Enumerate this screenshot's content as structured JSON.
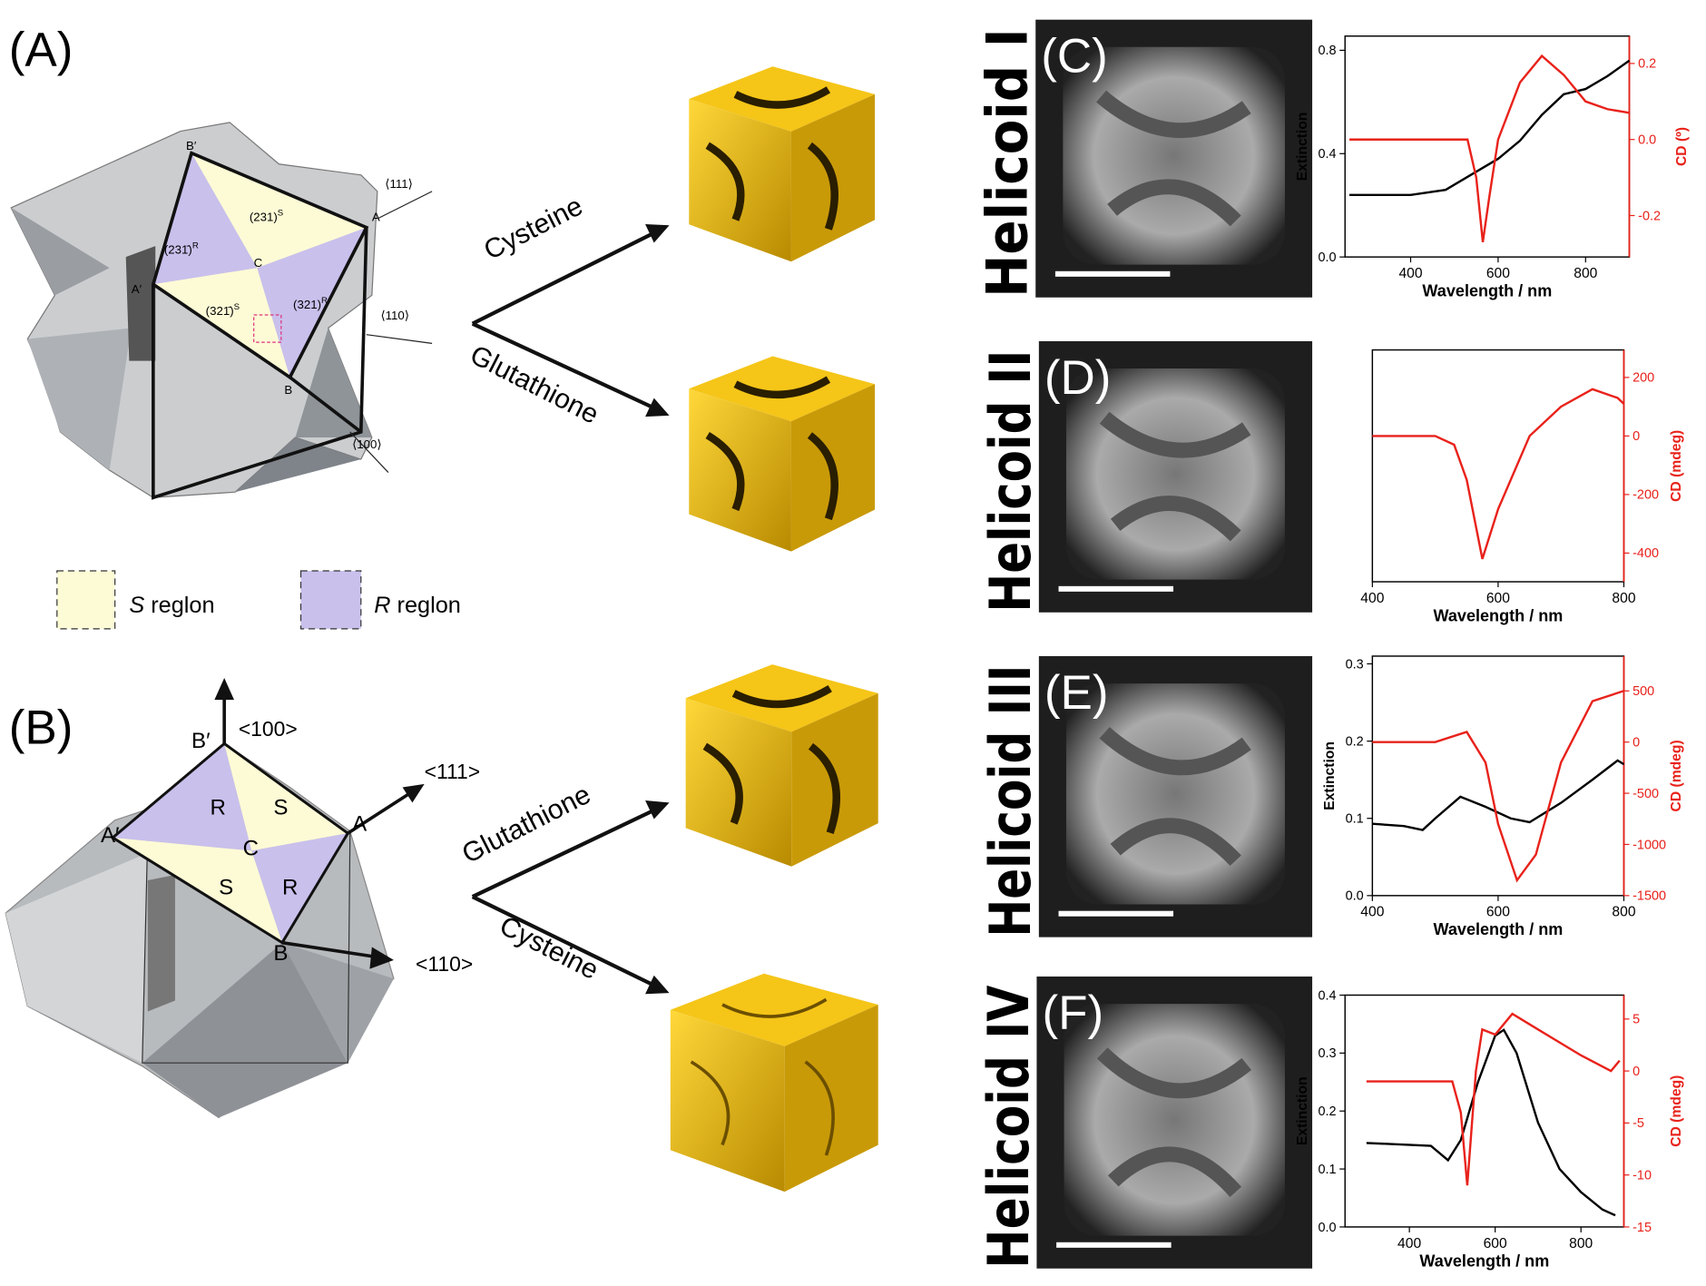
{
  "panel_a": {
    "label": "(A)",
    "vertices": [
      "B′",
      "A",
      "A′",
      "C",
      "B"
    ],
    "faces": [
      {
        "text": "(231)",
        "sup": "S"
      },
      {
        "text": "(231̄)",
        "sup": "R"
      },
      {
        "text": "(321)",
        "sup": "R"
      },
      {
        "text": "(321̄)",
        "sup": "S"
      }
    ],
    "directions": [
      "⟨111⟩",
      "⟨110⟩",
      "⟨100⟩"
    ]
  },
  "legend": [
    {
      "symbol": "S",
      "text": "reglon"
    },
    {
      "symbol": "R",
      "text": "reglon"
    }
  ],
  "panel_b": {
    "label": "(B)",
    "vertices": [
      "B′",
      "A",
      "A′",
      "C",
      "B"
    ],
    "faces": [
      "R",
      "S",
      "S",
      "R"
    ],
    "directions": [
      "<100>",
      "<111>",
      "<110>"
    ]
  },
  "ligands": [
    "Cysteine",
    "Glutathione",
    "Glutathione",
    "Cysteine"
  ],
  "rows": [
    {
      "name": "Helicoid I",
      "panel": "(C)"
    },
    {
      "name": "Helicoid II",
      "panel": "(D)"
    },
    {
      "name": "Helicoid III",
      "panel": "(E)"
    },
    {
      "name": "Helicoid IV",
      "panel": "(F)"
    }
  ],
  "chart_data": [
    {
      "type": "line",
      "x_label": "Wavelength / nm",
      "y_label": "Extinction",
      "y2_label": "CD (º)",
      "y2_color": "#e8221b",
      "xlim": [
        250,
        900
      ],
      "xticks": [
        400,
        600,
        800
      ],
      "ylim": [
        0,
        0.855
      ],
      "yticks": [
        {
          "value": 0,
          "label": "0.0"
        },
        0.4,
        0.8
      ],
      "y2lim": [
        -0.309,
        0.272
      ],
      "y2ticks": [
        -0.2,
        {
          "value": 0,
          "label": "0.0"
        },
        0.2
      ],
      "series": [
        {
          "color": "#000000",
          "x": [
            260,
            400,
            480,
            550,
            600,
            650,
            700,
            750,
            800,
            850,
            900
          ],
          "values": [
            0.24,
            0.24,
            0.26,
            0.33,
            0.38,
            0.45,
            0.55,
            0.63,
            0.65,
            0.7,
            0.76
          ]
        },
        {
          "color": "#e8221b",
          "axis": "y2",
          "x": [
            260,
            500,
            530,
            550,
            565,
            580,
            600,
            650,
            700,
            750,
            800,
            850,
            900
          ],
          "values": [
            0.0,
            0.0,
            0.0,
            -0.1,
            -0.27,
            -0.15,
            0.0,
            0.15,
            0.22,
            0.17,
            0.1,
            0.08,
            0.07
          ]
        }
      ]
    },
    {
      "type": "line",
      "x_label": "Wavelength / nm",
      "y2_label": "CD (mdeg)",
      "y2_color": "#e8221b",
      "xlim": [
        400,
        800
      ],
      "xticks": [
        400,
        600,
        800
      ],
      "y2lim": [
        -498,
        294
      ],
      "y2ticks": [
        -400,
        -200,
        0,
        200
      ],
      "series": [
        {
          "color": "#e8221b",
          "axis": "y2",
          "x": [
            400,
            500,
            530,
            550,
            575,
            600,
            650,
            700,
            750,
            790,
            800
          ],
          "values": [
            0,
            0,
            -30,
            -150,
            -420,
            -250,
            0,
            100,
            160,
            130,
            110
          ]
        }
      ]
    },
    {
      "type": "line",
      "x_label": "Wavelength / nm",
      "y_label": "Extinction",
      "y2_label": "CD (mdeg)",
      "y2_color": "#e8221b",
      "xlim": [
        400,
        800
      ],
      "xticks": [
        400,
        600,
        800
      ],
      "ylim": [
        0,
        0.31
      ],
      "yticks": [
        {
          "value": 0,
          "label": "0.0"
        },
        0.1,
        0.2,
        0.3
      ],
      "y2lim": [
        -1500,
        840
      ],
      "y2ticks": [
        -1500,
        -1000,
        -500,
        0,
        500
      ],
      "series": [
        {
          "color": "#000000",
          "x": [
            400,
            450,
            480,
            500,
            540,
            580,
            620,
            650,
            700,
            750,
            790,
            800
          ],
          "values": [
            0.093,
            0.09,
            0.085,
            0.1,
            0.128,
            0.115,
            0.1,
            0.095,
            0.12,
            0.15,
            0.175,
            0.17
          ]
        },
        {
          "color": "#e8221b",
          "axis": "y2",
          "x": [
            400,
            500,
            550,
            580,
            600,
            630,
            660,
            700,
            750,
            800
          ],
          "values": [
            0,
            0,
            100,
            -200,
            -800,
            -1350,
            -1100,
            -200,
            400,
            500
          ]
        }
      ]
    },
    {
      "type": "line",
      "x_label": "Wavelength / nm",
      "y_label": "Extinction",
      "y2_label": "CD (mdeg)",
      "y2_color": "#e8221b",
      "xlim": [
        250,
        900
      ],
      "xticks": [
        400,
        600,
        800
      ],
      "ylim": [
        0,
        0.4
      ],
      "yticks": [
        {
          "value": 0,
          "label": "0.0"
        },
        0.1,
        0.2,
        0.3,
        0.4
      ],
      "y2lim": [
        -15,
        7.3
      ],
      "y2ticks": [
        -15,
        -10,
        -5,
        0,
        5
      ],
      "series": [
        {
          "color": "#000000",
          "x": [
            300,
            450,
            490,
            520,
            560,
            600,
            620,
            650,
            700,
            750,
            800,
            850,
            880
          ],
          "values": [
            0.145,
            0.14,
            0.115,
            0.15,
            0.25,
            0.33,
            0.34,
            0.3,
            0.18,
            0.1,
            0.06,
            0.03,
            0.02
          ]
        },
        {
          "color": "#e8221b",
          "axis": "y2",
          "x": [
            300,
            500,
            520,
            535,
            555,
            570,
            600,
            640,
            700,
            800,
            870,
            890
          ],
          "values": [
            -1,
            -1,
            -4,
            -11,
            0,
            4,
            3.5,
            5.5,
            4,
            1.5,
            0,
            1
          ]
        }
      ]
    }
  ]
}
